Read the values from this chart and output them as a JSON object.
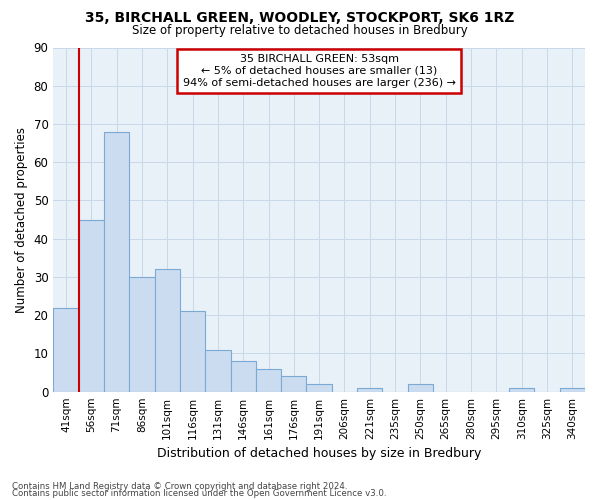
{
  "title1": "35, BIRCHALL GREEN, WOODLEY, STOCKPORT, SK6 1RZ",
  "title2": "Size of property relative to detached houses in Bredbury",
  "xlabel": "Distribution of detached houses by size in Bredbury",
  "ylabel": "Number of detached properties",
  "bins": [
    "41sqm",
    "56sqm",
    "71sqm",
    "86sqm",
    "101sqm",
    "116sqm",
    "131sqm",
    "146sqm",
    "161sqm",
    "176sqm",
    "191sqm",
    "206sqm",
    "221sqm",
    "235sqm",
    "250sqm",
    "265sqm",
    "280sqm",
    "295sqm",
    "310sqm",
    "325sqm",
    "340sqm"
  ],
  "values": [
    22,
    45,
    68,
    30,
    32,
    21,
    11,
    8,
    6,
    4,
    2,
    0,
    1,
    0,
    2,
    0,
    0,
    0,
    1,
    0,
    1
  ],
  "bar_color": "#ccdcf0",
  "bar_edge_color": "#7aaad4",
  "grid_color": "#c8d8e8",
  "background_color": "#e8f0f8",
  "annotation_text1": "35 BIRCHALL GREEN: 53sqm",
  "annotation_text2": "← 5% of detached houses are smaller (13)",
  "annotation_text3": "94% of semi-detached houses are larger (236) →",
  "annotation_box_color": "#ffffff",
  "annotation_border_color": "#cc0000",
  "ylim": [
    0,
    90
  ],
  "property_line_color": "#cc0000",
  "footer1": "Contains HM Land Registry data © Crown copyright and database right 2024.",
  "footer2": "Contains public sector information licensed under the Open Government Licence v3.0."
}
